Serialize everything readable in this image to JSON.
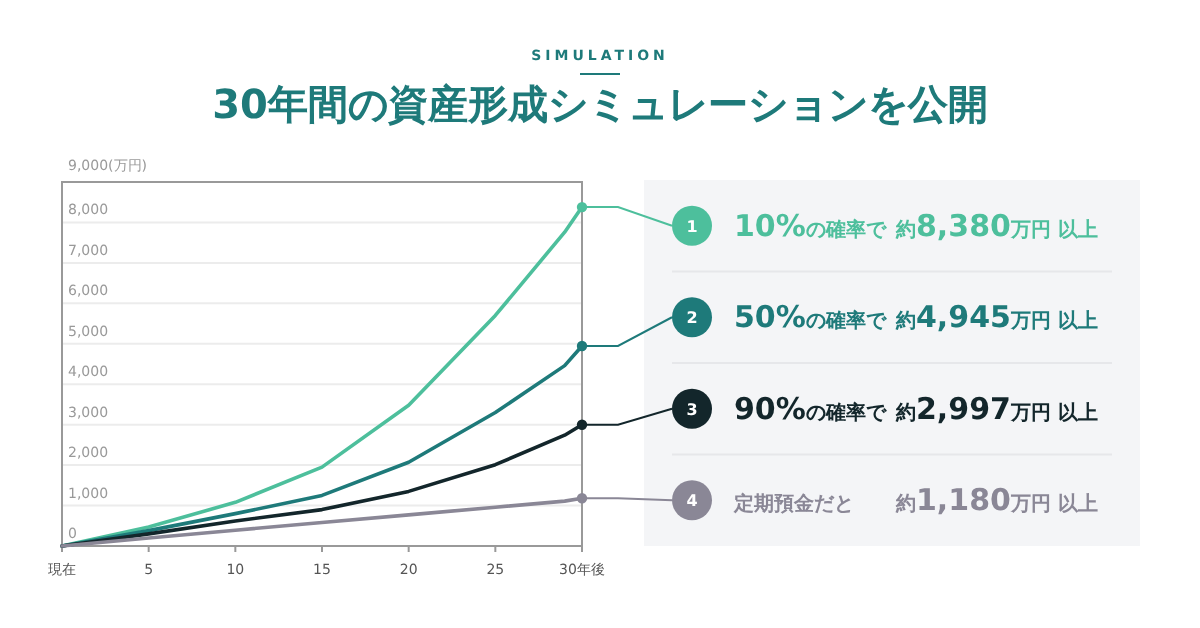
{
  "chart_data": {
    "type": "line",
    "subtitle": "SIMULATION",
    "title": "30年間の資産形成シミュレーションを公開",
    "x": [
      0,
      5,
      10,
      15,
      20,
      25,
      29,
      30
    ],
    "xlim": [
      0,
      30
    ],
    "xticks": [
      {
        "value": 0,
        "label": "現在"
      },
      5,
      10,
      15,
      20,
      25,
      {
        "value": 30,
        "label": "30年後"
      }
    ],
    "ylim": [
      0,
      9000
    ],
    "yticks": [
      0,
      {
        "value": 1000,
        "label": "1,000"
      },
      {
        "value": 2000,
        "label": "2,000"
      },
      {
        "value": 3000,
        "label": "3,000"
      },
      {
        "value": 4000,
        "label": "4,000"
      },
      {
        "value": 5000,
        "label": "5,000"
      },
      {
        "value": 6000,
        "label": "6,000"
      },
      {
        "value": 7000,
        "label": "7,000"
      },
      {
        "value": 8000,
        "label": "8,000"
      },
      {
        "value": 9000,
        "label": "9,000(万円)"
      }
    ],
    "grid": "y",
    "legend": "right",
    "series": [
      {
        "name": "10%の確率で",
        "color": "#4dbf9c",
        "values": [
          0,
          470,
          1080,
          1950,
          3480,
          5700,
          7760,
          8380
        ]
      },
      {
        "name": "50%の確率で",
        "color": "#1e7a7a",
        "values": [
          0,
          380,
          800,
          1250,
          2070,
          3300,
          4460,
          4945
        ]
      },
      {
        "name": "90%の確率で",
        "color": "#13262b",
        "values": [
          0,
          300,
          620,
          900,
          1350,
          2010,
          2740,
          2997
        ]
      },
      {
        "name": "定期預金だと",
        "color": "#8a8796",
        "values": [
          0,
          200,
          390,
          580,
          770,
          960,
          1110,
          1180
        ]
      }
    ],
    "annotations": [
      "1",
      "2",
      "3",
      "4",
      "約8,380万円 以上",
      "約4,945万円 以上",
      "約2,997万円 以上",
      "約1,180万円 以上"
    ]
  }
}
